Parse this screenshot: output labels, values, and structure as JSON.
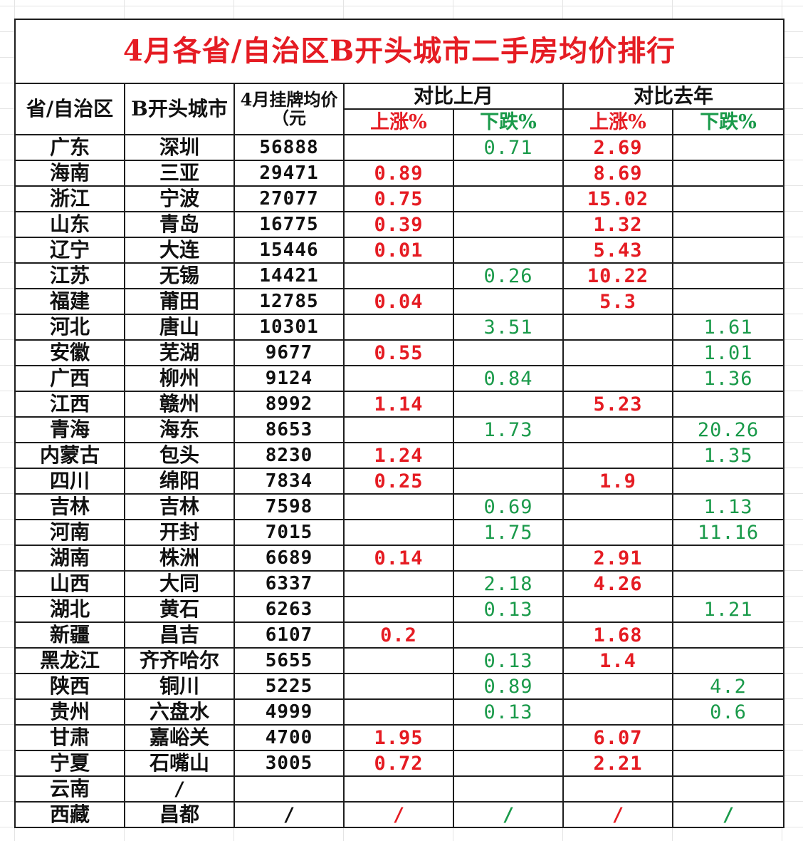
{
  "title": "4月各省/自治区B开头城市二手房均价排行",
  "headers": {
    "province": "省/自治区",
    "city": "B开头城市",
    "price": "4月挂牌均价（元",
    "vs_last_month": "对比上月",
    "vs_last_year": "对比去年",
    "rise": "上涨%",
    "fall": "下跌%"
  },
  "colors": {
    "title": "#e51c23",
    "rise": "#e51c23",
    "fall": "#1a9a4a",
    "border": "#1e1e1e"
  },
  "rows": [
    {
      "province": "广东",
      "city": "深圳",
      "price": "56888",
      "m_up": "",
      "m_down": "0.71",
      "y_up": "2.69",
      "y_down": ""
    },
    {
      "province": "海南",
      "city": "三亚",
      "price": "29471",
      "m_up": "0.89",
      "m_down": "",
      "y_up": "8.69",
      "y_down": ""
    },
    {
      "province": "浙江",
      "city": "宁波",
      "price": "27077",
      "m_up": "0.75",
      "m_down": "",
      "y_up": "15.02",
      "y_down": ""
    },
    {
      "province": "山东",
      "city": "青岛",
      "price": "16775",
      "m_up": "0.39",
      "m_down": "",
      "y_up": "1.32",
      "y_down": ""
    },
    {
      "province": "辽宁",
      "city": "大连",
      "price": "15446",
      "m_up": "0.01",
      "m_down": "",
      "y_up": "5.43",
      "y_down": ""
    },
    {
      "province": "江苏",
      "city": "无锡",
      "price": "14421",
      "m_up": "",
      "m_down": "0.26",
      "y_up": "10.22",
      "y_down": ""
    },
    {
      "province": "福建",
      "city": "莆田",
      "price": "12785",
      "m_up": "0.04",
      "m_down": "",
      "y_up": "5.3",
      "y_down": ""
    },
    {
      "province": "河北",
      "city": "唐山",
      "price": "10301",
      "m_up": "",
      "m_down": "3.51",
      "y_up": "",
      "y_down": "1.61"
    },
    {
      "province": "安徽",
      "city": "芜湖",
      "price": "9677",
      "m_up": "0.55",
      "m_down": "",
      "y_up": "",
      "y_down": "1.01"
    },
    {
      "province": "广西",
      "city": "柳州",
      "price": "9124",
      "m_up": "",
      "m_down": "0.84",
      "y_up": "",
      "y_down": "1.36"
    },
    {
      "province": "江西",
      "city": "赣州",
      "price": "8992",
      "m_up": "1.14",
      "m_down": "",
      "y_up": "5.23",
      "y_down": ""
    },
    {
      "province": "青海",
      "city": "海东",
      "price": "8653",
      "m_up": "",
      "m_down": "1.73",
      "y_up": "",
      "y_down": "20.26"
    },
    {
      "province": "内蒙古",
      "city": "包头",
      "price": "8230",
      "m_up": "1.24",
      "m_down": "",
      "y_up": "",
      "y_down": "1.35"
    },
    {
      "province": "四川",
      "city": "绵阳",
      "price": "7834",
      "m_up": "0.25",
      "m_down": "",
      "y_up": "1.9",
      "y_down": ""
    },
    {
      "province": "吉林",
      "city": "吉林",
      "price": "7598",
      "m_up": "",
      "m_down": "0.69",
      "y_up": "",
      "y_down": "1.13"
    },
    {
      "province": "河南",
      "city": "开封",
      "price": "7015",
      "m_up": "",
      "m_down": "1.75",
      "y_up": "",
      "y_down": "11.16"
    },
    {
      "province": "湖南",
      "city": "株洲",
      "price": "6689",
      "m_up": "0.14",
      "m_down": "",
      "y_up": "2.91",
      "y_down": ""
    },
    {
      "province": "山西",
      "city": "大同",
      "price": "6337",
      "m_up": "",
      "m_down": "2.18",
      "y_up": "4.26",
      "y_down": ""
    },
    {
      "province": "湖北",
      "city": "黄石",
      "price": "6263",
      "m_up": "",
      "m_down": "0.13",
      "y_up": "",
      "y_down": "1.21"
    },
    {
      "province": "新疆",
      "city": "昌吉",
      "price": "6107",
      "m_up": "0.2",
      "m_down": "",
      "y_up": "1.68",
      "y_down": ""
    },
    {
      "province": "黑龙江",
      "city": "齐齐哈尔",
      "price": "5655",
      "m_up": "",
      "m_down": "0.13",
      "y_up": "1.4",
      "y_down": ""
    },
    {
      "province": "陕西",
      "city": "铜川",
      "price": "5225",
      "m_up": "",
      "m_down": "0.89",
      "y_up": "",
      "y_down": "4.2"
    },
    {
      "province": "贵州",
      "city": "六盘水",
      "price": "4999",
      "m_up": "",
      "m_down": "0.13",
      "y_up": "",
      "y_down": "0.6"
    },
    {
      "province": "甘肃",
      "city": "嘉峪关",
      "price": "4700",
      "m_up": "1.95",
      "m_down": "",
      "y_up": "6.07",
      "y_down": ""
    },
    {
      "province": "宁夏",
      "city": "石嘴山",
      "price": "3005",
      "m_up": "0.72",
      "m_down": "",
      "y_up": "2.21",
      "y_down": ""
    },
    {
      "province": "云南",
      "city": "/",
      "price": "",
      "m_up": "",
      "m_down": "",
      "y_up": "",
      "y_down": ""
    },
    {
      "province": "西藏",
      "city": "昌都",
      "price": "/",
      "m_up": "/",
      "m_down": "/",
      "y_up": "/",
      "y_down": "/"
    }
  ]
}
